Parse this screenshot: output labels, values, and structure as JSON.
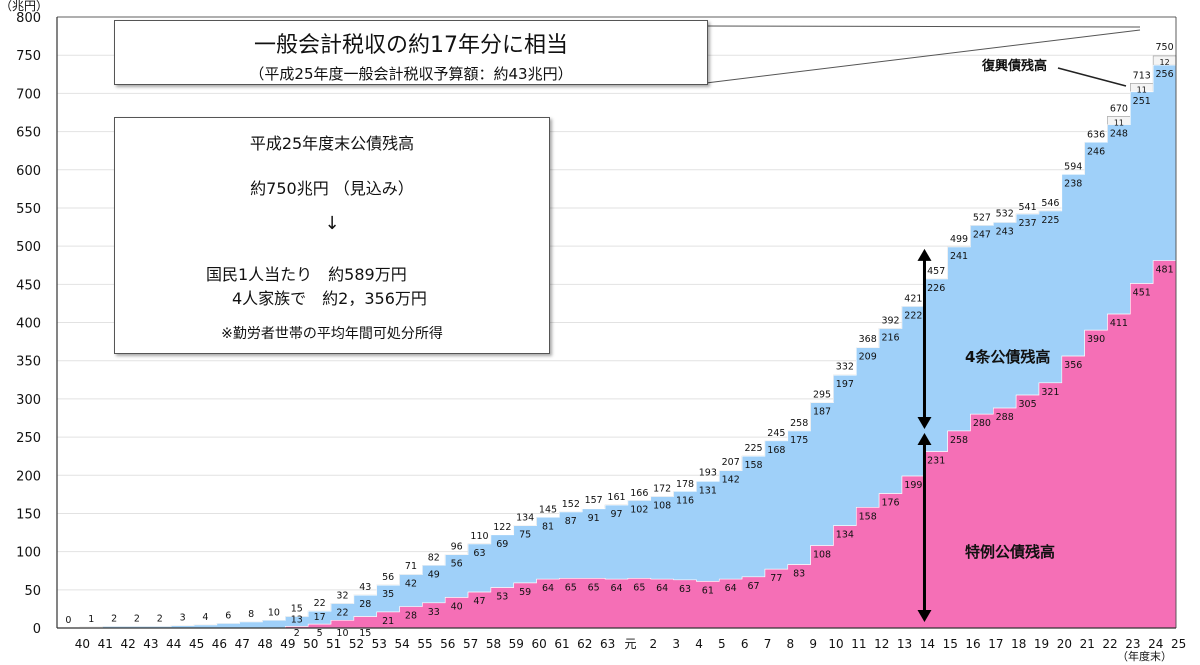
{
  "chart_data": {
    "type": "area",
    "ylabel": "（兆円）",
    "xlabel": "（年度末）",
    "ylim": [
      0,
      800
    ],
    "yticks": [
      0,
      50,
      100,
      150,
      200,
      250,
      300,
      350,
      400,
      450,
      500,
      550,
      600,
      650,
      700,
      750,
      800
    ],
    "categories": [
      "40",
      "41",
      "42",
      "43",
      "44",
      "45",
      "46",
      "47",
      "48",
      "49",
      "50",
      "51",
      "52",
      "53",
      "54",
      "55",
      "56",
      "57",
      "58",
      "59",
      "60",
      "61",
      "62",
      "63",
      "元",
      "2",
      "3",
      "4",
      "5",
      "6",
      "7",
      "8",
      "9",
      "10",
      "11",
      "12",
      "13",
      "14",
      "15",
      "16",
      "17",
      "18",
      "19",
      "20",
      "21",
      "22",
      "23",
      "24",
      "25"
    ],
    "totals": [
      0,
      1,
      2,
      2,
      2,
      3,
      4,
      6,
      8,
      10,
      15,
      22,
      32,
      43,
      56,
      71,
      82,
      96,
      110,
      122,
      134,
      145,
      152,
      157,
      161,
      166,
      172,
      178,
      193,
      207,
      225,
      245,
      258,
      295,
      332,
      368,
      392,
      421,
      457,
      499,
      527,
      532,
      541,
      546,
      594,
      636,
      670,
      713,
      750
    ],
    "series": [
      {
        "name": "特例公債残高",
        "color": "#f56fb6",
        "values": [
          0,
          0,
          0,
          0,
          0,
          0,
          0,
          0,
          0,
          0,
          2,
          5,
          10,
          15,
          21,
          28,
          33,
          40,
          47,
          53,
          59,
          64,
          65,
          65,
          64,
          65,
          64,
          63,
          61,
          64,
          67,
          77,
          83,
          108,
          134,
          158,
          176,
          199,
          231,
          258,
          280,
          288,
          305,
          321,
          356,
          390,
          411,
          451,
          481
        ]
      },
      {
        "name": "4条公債残高",
        "color": "#9fd0f9",
        "values": [
          0,
          1,
          2,
          2,
          2,
          3,
          4,
          6,
          8,
          10,
          13,
          17,
          22,
          28,
          35,
          42,
          49,
          56,
          63,
          69,
          75,
          81,
          87,
          91,
          97,
          102,
          108,
          116,
          131,
          142,
          158,
          168,
          175,
          187,
          197,
          209,
          216,
          222,
          226,
          241,
          247,
          243,
          237,
          225,
          238,
          246,
          248,
          251,
          256
        ]
      },
      {
        "name": "復興債残高",
        "color": "#f4f4f4",
        "values": [
          0,
          0,
          0,
          0,
          0,
          0,
          0,
          0,
          0,
          0,
          0,
          0,
          0,
          0,
          0,
          0,
          0,
          0,
          0,
          0,
          0,
          0,
          0,
          0,
          0,
          0,
          0,
          0,
          0,
          0,
          0,
          0,
          0,
          0,
          0,
          0,
          0,
          0,
          0,
          0,
          0,
          0,
          0,
          0,
          0,
          0,
          11,
          11,
          12
        ]
      }
    ],
    "annotations": {
      "callout_title": "一般会計税収の約17年分に相当",
      "callout_sub": "（平成25年度一般会計税収予算額：約43兆円）",
      "info_lines": [
        "平成25年度末公債残高",
        "約750兆円 （見込み）",
        "↓",
        "国民1人当たり　約589万円",
        "4人家族で　約2，356万円",
        "※勤労者世帯の平均年間可処分所得"
      ],
      "label_fukko": "復興債残高",
      "label_4jo": "4条公債残高",
      "label_tokurei": "特例公債残高"
    }
  }
}
